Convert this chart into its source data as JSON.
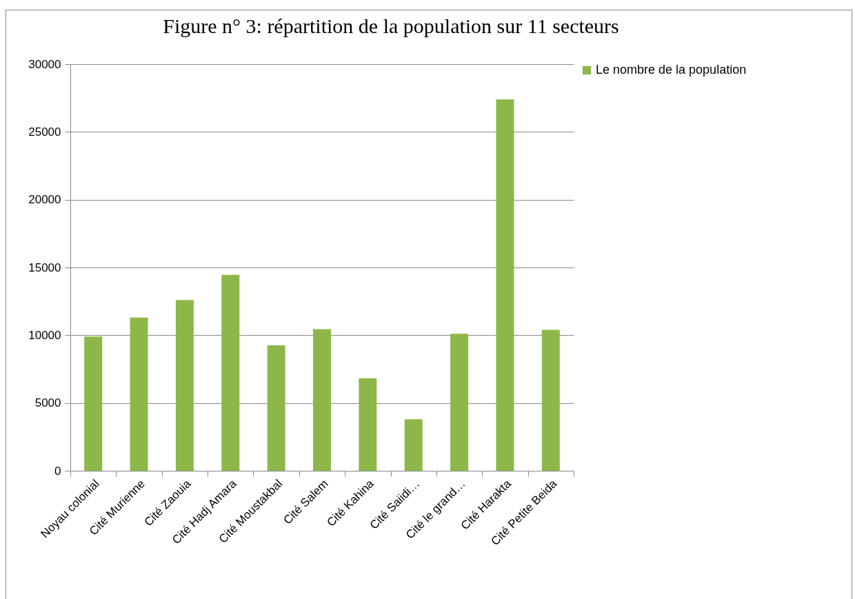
{
  "chart_data": {
    "type": "bar",
    "title": "Figure n° 3: répartition de la population sur 11 secteurs",
    "categories": [
      "Noyau colonial",
      "Cité Murienne",
      "Cité Zaouia",
      "Cité Hadj Amara",
      "Cité Moustakbal",
      "Cité Salem",
      "Cité Kahina",
      "Cité Saiidi…",
      "Cité le grand…",
      "Cité Harakta",
      "Cité Petite Beida"
    ],
    "series": [
      {
        "name": "Le nombre de la population",
        "color": "#8db849",
        "values": [
          9900,
          11300,
          12600,
          14450,
          9250,
          10450,
          6830,
          3800,
          10100,
          27400,
          10400
        ]
      }
    ],
    "ylim": [
      0,
      30000
    ],
    "yticks": [
      0,
      5000,
      10000,
      15000,
      20000,
      25000,
      30000
    ],
    "grid": "y",
    "legend": "right"
  }
}
